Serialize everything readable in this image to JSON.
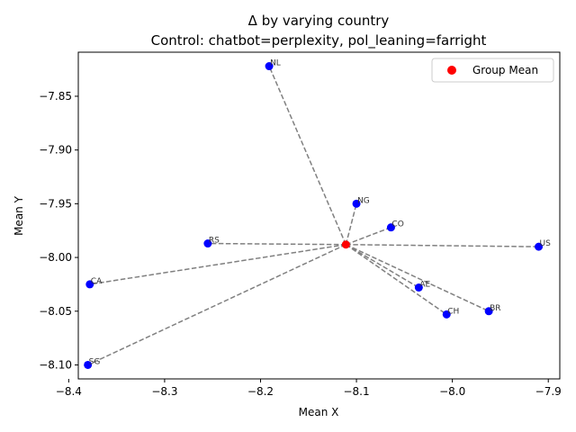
{
  "chart_data": {
    "type": "scatter",
    "title": "Δ by varying country",
    "subtitle": "Control: chatbot=perplexity, pol_leaning=farright",
    "xlabel": "Mean X",
    "ylabel": "Mean Y",
    "xlim": [
      -8.39,
      -7.888
    ],
    "ylim": [
      -8.113,
      -7.809
    ],
    "xticks": [
      -8.4,
      -8.3,
      -8.2,
      -8.1,
      -8.0,
      -7.9
    ],
    "xtick_labels": [
      "−8.4",
      "−8.3",
      "−8.2",
      "−8.1",
      "−8.0",
      "−7.9"
    ],
    "yticks": [
      -7.85,
      -7.9,
      -7.95,
      -8.0,
      -8.05,
      -8.1
    ],
    "ytick_labels": [
      "−7.85",
      "−7.90",
      "−7.95",
      "−8.00",
      "−8.05",
      "−8.10"
    ],
    "group_mean": {
      "x": -8.111,
      "y": -7.988
    },
    "legend": {
      "label": "Group Mean",
      "position": "top-right"
    },
    "colors": {
      "points": "#0000ff",
      "mean": "#ff0000",
      "lines": "#808080"
    },
    "points": [
      {
        "label": "NL",
        "x": -8.191,
        "y": -7.822
      },
      {
        "label": "NG",
        "x": -8.1,
        "y": -7.95
      },
      {
        "label": "CO",
        "x": -8.064,
        "y": -7.972
      },
      {
        "label": "RS",
        "x": -8.255,
        "y": -7.987
      },
      {
        "label": "US",
        "x": -7.91,
        "y": -7.99
      },
      {
        "label": "CA",
        "x": -8.378,
        "y": -8.025
      },
      {
        "label": "AE",
        "x": -8.035,
        "y": -8.028
      },
      {
        "label": "BR",
        "x": -7.962,
        "y": -8.05
      },
      {
        "label": "CH",
        "x": -8.006,
        "y": -8.053
      },
      {
        "label": "SG",
        "x": -8.38,
        "y": -8.1
      }
    ]
  }
}
